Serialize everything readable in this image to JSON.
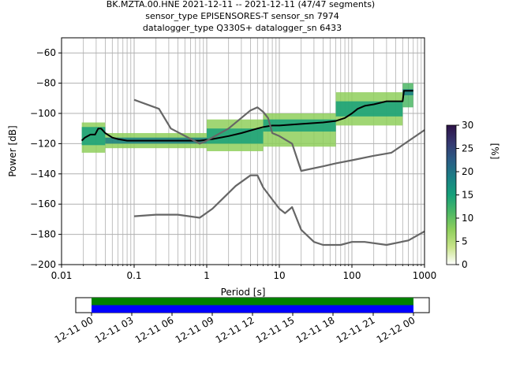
{
  "title_lines": [
    "BK.MZTA.00.HNE   2021-12-11 -- 2021-12-11  (47/47 segments)",
    "sensor_type EPISENSORES-T sensor_sn 7974",
    "datalogger_type Q330S+ datalogger_sn 6433"
  ],
  "colors": {
    "noise_model": "#666666",
    "mean_line": "#000000",
    "grid": "#b0b0b0",
    "coverage_green": "#008000",
    "coverage_blue": "#0000ff"
  },
  "chart_data": {
    "type": "heatmap",
    "xlabel": "Period [s]",
    "ylabel": "Power [dB]",
    "xscale": "log",
    "xlim": [
      0.01,
      1000
    ],
    "ylim": [
      -200,
      -50
    ],
    "xticks": [
      0.01,
      0.1,
      1,
      10,
      100,
      1000
    ],
    "xtick_labels": [
      "0.01",
      "0.1",
      "1",
      "10",
      "100",
      "1000"
    ],
    "yticks": [
      -200,
      -180,
      -160,
      -140,
      -120,
      -100,
      -80,
      -60
    ],
    "ytick_labels": [
      "−200",
      "−180",
      "−160",
      "−140",
      "−120",
      "−100",
      "−80",
      "−60"
    ],
    "grid": true,
    "colorbar": {
      "label": "[%]",
      "range": [
        0,
        30
      ],
      "ticks": [
        0,
        5,
        10,
        15,
        20,
        25,
        30
      ],
      "tick_labels": [
        "0",
        "5",
        "10",
        "15",
        "20",
        "25",
        "30"
      ],
      "colormap": [
        "#ffffff",
        "#c9e48a",
        "#8fcf5c",
        "#4cb765",
        "#16a07a",
        "#1a7f85",
        "#2a5c85",
        "#35376f",
        "#2d1147"
      ]
    },
    "series": [
      {
        "role": "psd_mean",
        "x": [
          0.019,
          0.021,
          0.025,
          0.029,
          0.032,
          0.035,
          0.04,
          0.05,
          0.06,
          0.08,
          0.1,
          0.2,
          0.4,
          0.8,
          1.2,
          2,
          3,
          5,
          6,
          8,
          10,
          20,
          40,
          60,
          80,
          100,
          120,
          150,
          200,
          300,
          400,
          500,
          520,
          700
        ],
        "y": [
          -118,
          -116,
          -114,
          -114,
          -110,
          -110,
          -113,
          -116,
          -117,
          -118,
          -118,
          -118,
          -118,
          -118,
          -117,
          -115,
          -113,
          -110,
          -109,
          -108,
          -108,
          -107,
          -106,
          -105,
          -103,
          -100,
          -97,
          -95,
          -94,
          -92,
          -92,
          -92,
          -85,
          -85
        ]
      },
      {
        "role": "noise_model_upper",
        "x": [
          0.1,
          0.22,
          0.32,
          0.8,
          1,
          2,
          4,
          5,
          6,
          7,
          8,
          10,
          15,
          20,
          40,
          60,
          100,
          200,
          350,
          1000
        ],
        "y": [
          -91,
          -97,
          -110,
          -120,
          -118,
          -110,
          -98,
          -96,
          -99,
          -103,
          -113,
          -115,
          -120,
          -138,
          -135,
          -133,
          -131,
          -128,
          -126,
          -111
        ]
      },
      {
        "role": "noise_model_lower",
        "x": [
          0.1,
          0.2,
          0.4,
          0.8,
          1.2,
          2.5,
          4,
          5,
          6,
          8,
          10,
          12,
          15,
          20,
          30,
          40,
          70,
          100,
          150,
          300,
          600,
          1000
        ],
        "y": [
          -168,
          -167,
          -167,
          -169,
          -163,
          -148,
          -141,
          -141,
          -149,
          -157,
          -163,
          -166,
          -162,
          -177,
          -185,
          -187,
          -187,
          -185,
          -185,
          -187,
          -184,
          -178
        ]
      }
    ],
    "density_bands": [
      {
        "x": [
          0.019,
          0.04
        ],
        "y": [
          -126,
          -106
        ],
        "level": 2
      },
      {
        "x": [
          0.019,
          0.04
        ],
        "y": [
          -121,
          -109
        ],
        "level": 4
      },
      {
        "x": [
          0.04,
          1
        ],
        "y": [
          -123,
          -113
        ],
        "level": 2
      },
      {
        "x": [
          0.04,
          1
        ],
        "y": [
          -120,
          -116
        ],
        "level": 5
      },
      {
        "x": [
          1,
          6
        ],
        "y": [
          -125,
          -104
        ],
        "level": 2
      },
      {
        "x": [
          1,
          6
        ],
        "y": [
          -120,
          -110
        ],
        "level": 4
      },
      {
        "x": [
          6,
          60
        ],
        "y": [
          -122,
          -100
        ],
        "level": 2
      },
      {
        "x": [
          6,
          60
        ],
        "y": [
          -112,
          -104
        ],
        "level": 4
      },
      {
        "x": [
          60,
          500
        ],
        "y": [
          -108,
          -86
        ],
        "level": 2
      },
      {
        "x": [
          60,
          500
        ],
        "y": [
          -102,
          -92
        ],
        "level": 4
      },
      {
        "x": [
          500,
          700
        ],
        "y": [
          -96,
          -80
        ],
        "level": 3
      },
      {
        "x": [
          500,
          700
        ],
        "y": [
          -88,
          -84
        ],
        "level": 5
      }
    ]
  },
  "timeline": {
    "tick_labels": [
      "12-11 00",
      "12-11 03",
      "12-11 06",
      "12-11 09",
      "12-11 12",
      "12-11 15",
      "12-11 18",
      "12-11 21",
      "12-12 00"
    ],
    "coverage": [
      {
        "start_hour": 0,
        "end_hour": 24,
        "color": "#008000"
      },
      {
        "start_hour": 0,
        "end_hour": 24,
        "color": "#0000ff"
      }
    ]
  }
}
